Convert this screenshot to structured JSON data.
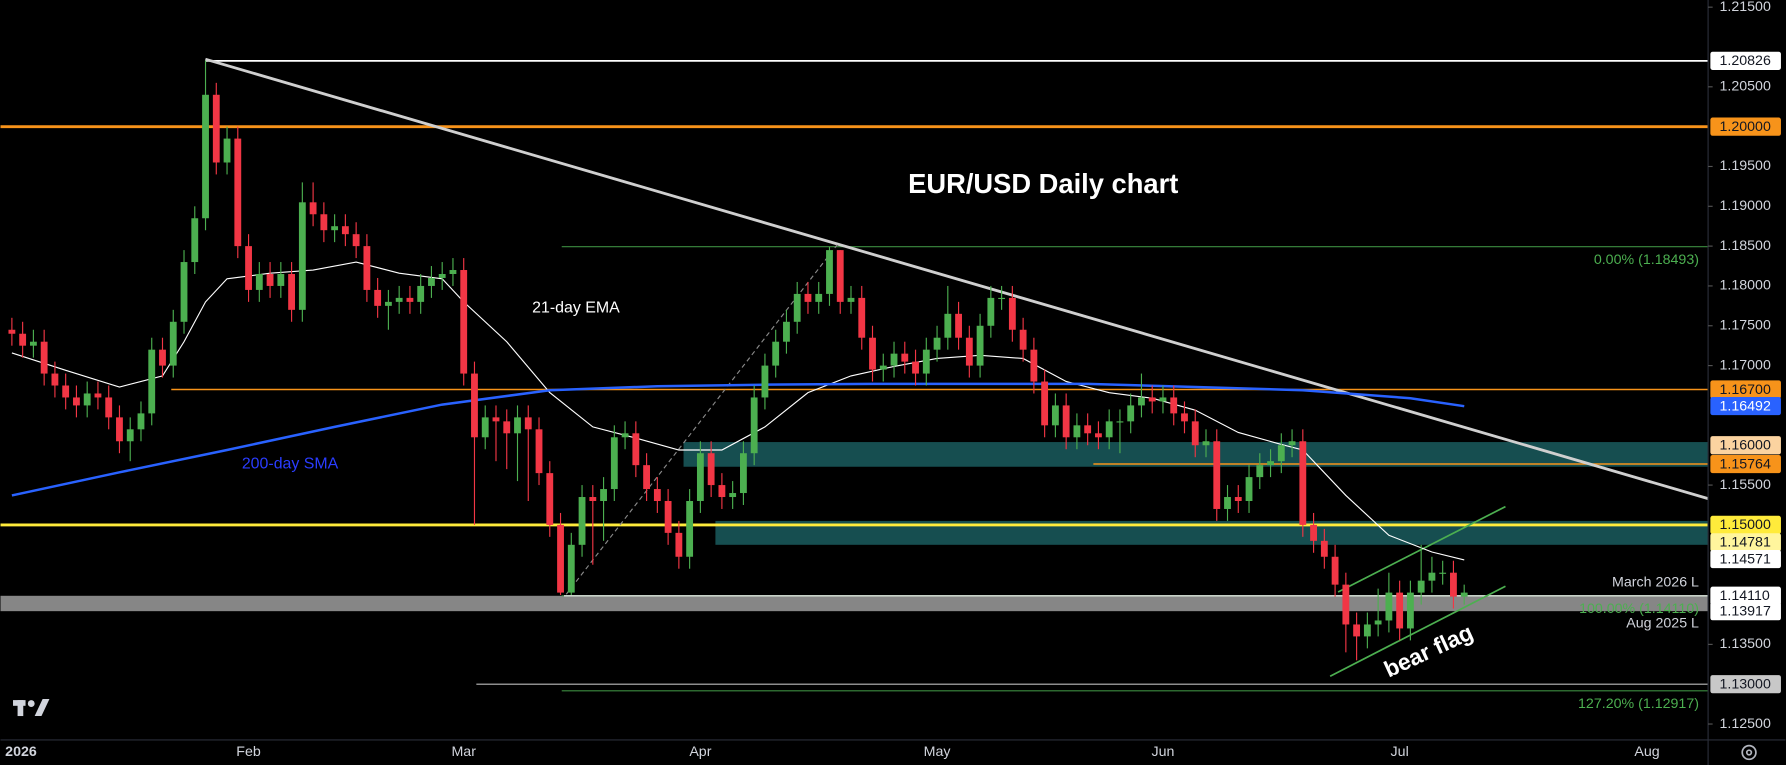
{
  "chart_data": {
    "type": "candlestick",
    "title": "EUR/USD Daily chart",
    "up_color": "#4caf50",
    "down_color": "#f23645",
    "ylim": [
      1.123,
      1.2159
    ],
    "yticks": [
      {
        "value": 1.215,
        "label": "1.21500"
      },
      {
        "value": 1.205,
        "label": "1.20500"
      },
      {
        "value": 1.195,
        "label": "1.19500"
      },
      {
        "value": 1.19,
        "label": "1.19000"
      },
      {
        "value": 1.185,
        "label": "1.18500"
      },
      {
        "value": 1.18,
        "label": "1.18000"
      },
      {
        "value": 1.175,
        "label": "1.17500"
      },
      {
        "value": 1.17,
        "label": "1.17000"
      },
      {
        "value": 1.155,
        "label": "1.15500"
      },
      {
        "value": 1.135,
        "label": "1.13500"
      },
      {
        "value": 1.125,
        "label": "1.12500"
      }
    ],
    "categories": [
      "2026",
      null,
      null,
      null,
      null,
      null,
      null,
      null,
      null,
      null,
      null,
      null,
      null,
      null,
      null,
      null,
      null,
      null,
      null,
      null,
      null,
      null,
      "Feb",
      null,
      null,
      null,
      null,
      null,
      null,
      null,
      null,
      null,
      null,
      null,
      null,
      null,
      null,
      null,
      null,
      null,
      null,
      null,
      "Mar",
      null,
      null,
      null,
      null,
      null,
      null,
      null,
      null,
      null,
      null,
      null,
      null,
      null,
      null,
      null,
      null,
      null,
      null,
      null,
      null,
      null,
      "Apr",
      null,
      null,
      null,
      null,
      null,
      null,
      null,
      null,
      null,
      null,
      null,
      null,
      null,
      null,
      null,
      null,
      null,
      null,
      null,
      null,
      null,
      "May",
      null,
      null,
      null,
      null,
      null,
      null,
      null,
      null,
      null,
      null,
      null,
      null,
      null,
      null,
      null,
      null,
      null,
      null,
      null,
      null,
      "Jun",
      null,
      null,
      null,
      null,
      null,
      null,
      null,
      null,
      null,
      null,
      null,
      null,
      null,
      null,
      null,
      null,
      null,
      null,
      null,
      null,
      null,
      "Jul",
      null,
      null,
      null,
      null,
      null,
      null,
      null,
      null,
      null,
      null,
      null,
      null,
      null,
      null,
      null,
      null,
      null,
      null,
      null,
      null,
      null,
      null,
      "Aug"
    ],
    "open": [
      1.1745,
      1.174,
      1.1725,
      1.173,
      1.169,
      1.1675,
      1.166,
      1.165,
      1.1665,
      1.166,
      1.1635,
      1.1605,
      1.162,
      1.164,
      1.172,
      1.17,
      1.1755,
      1.183,
      1.1885,
      1.204,
      1.1955,
      1.1985,
      1.185,
      1.1795,
      1.1815,
      1.18,
      1.1815,
      1.177,
      1.1905,
      1.189,
      1.187,
      1.1875,
      1.1865,
      1.185,
      1.1795,
      1.1775,
      1.178,
      1.1785,
      1.178,
      1.18,
      1.181,
      1.1815,
      1.182,
      1.169,
      1.161,
      1.1635,
      1.163,
      1.1615,
      1.1635,
      1.162,
      1.1565,
      1.15,
      1.1415,
      1.1475,
      1.1535,
      1.153,
      1.1545,
      1.161,
      1.1615,
      1.1575,
      1.1545,
      1.153,
      1.149,
      1.146,
      1.153,
      1.159,
      1.155,
      1.1535,
      1.154,
      1.159,
      1.166,
      1.17,
      1.173,
      1.1755,
      1.179,
      1.178,
      1.179,
      1.1845,
      1.178,
      1.1785,
      1.1735,
      1.1695,
      1.17,
      1.1715,
      1.1705,
      1.169,
      1.172,
      1.1735,
      1.1765,
      1.1735,
      1.17,
      1.175,
      1.1785,
      1.1785,
      1.1745,
      1.172,
      1.168,
      1.1625,
      1.165,
      1.161,
      1.1625,
      1.1615,
      1.161,
      1.163,
      1.163,
      1.165,
      1.166,
      1.1655,
      1.166,
      1.164,
      1.163,
      1.16,
      1.1605,
      1.152,
      1.1535,
      1.153,
      1.156,
      1.1575,
      1.158,
      1.16,
      1.1605,
      1.15,
      1.148,
      1.146,
      1.1425,
      1.1375,
      1.136,
      1.1375,
      1.138,
      1.1415,
      1.137,
      1.1415,
      1.143,
      1.144,
      1.144,
      1.141,
      null,
      null,
      null,
      null,
      null,
      null,
      null,
      null,
      null,
      null,
      null,
      null,
      null,
      null,
      null,
      null,
      null
    ],
    "high": [
      1.176,
      1.1755,
      1.1745,
      1.1745,
      1.1705,
      1.169,
      1.1675,
      1.168,
      1.168,
      1.1675,
      1.165,
      1.1635,
      1.1655,
      1.1735,
      1.1735,
      1.177,
      1.1845,
      1.19,
      1.2083,
      1.2055,
      1.2,
      1.2,
      1.1865,
      1.183,
      1.183,
      1.183,
      1.183,
      1.193,
      1.193,
      1.1905,
      1.189,
      1.189,
      1.188,
      1.1865,
      1.181,
      1.1795,
      1.18,
      1.18,
      1.1815,
      1.1825,
      1.183,
      1.1835,
      1.1835,
      1.1705,
      1.165,
      1.165,
      1.1645,
      1.165,
      1.165,
      1.1635,
      1.158,
      1.1515,
      1.149,
      1.155,
      1.155,
      1.156,
      1.1625,
      1.163,
      1.163,
      1.159,
      1.156,
      1.1545,
      1.1505,
      1.1545,
      1.1605,
      1.1605,
      1.1565,
      1.1555,
      1.1605,
      1.1675,
      1.1715,
      1.1745,
      1.177,
      1.1805,
      1.1805,
      1.1805,
      1.1849,
      1.1845,
      1.18,
      1.18,
      1.175,
      1.1715,
      1.173,
      1.173,
      1.172,
      1.1735,
      1.175,
      1.18,
      1.178,
      1.175,
      1.1765,
      1.18,
      1.18,
      1.18,
      1.176,
      1.1735,
      1.1695,
      1.1665,
      1.1665,
      1.164,
      1.164,
      1.163,
      1.1645,
      1.1645,
      1.1665,
      1.169,
      1.1675,
      1.1675,
      1.1675,
      1.1655,
      1.1645,
      1.162,
      1.162,
      1.155,
      1.155,
      1.1575,
      1.159,
      1.1595,
      1.1615,
      1.162,
      1.162,
      1.1515,
      1.1495,
      1.1475,
      1.144,
      1.139,
      1.139,
      1.142,
      1.144,
      1.143,
      1.143,
      1.1475,
      1.146,
      1.1455,
      1.1455,
      1.1425,
      null,
      null,
      null,
      null,
      null,
      null,
      null,
      null,
      null,
      null,
      null,
      null,
      null,
      null,
      null,
      null,
      null
    ],
    "low": [
      1.1725,
      1.171,
      1.171,
      1.1675,
      1.166,
      1.1645,
      1.1635,
      1.1635,
      1.1645,
      1.162,
      1.159,
      1.158,
      1.1605,
      1.1625,
      1.1685,
      1.1685,
      1.174,
      1.1815,
      1.187,
      1.194,
      1.194,
      1.1835,
      1.178,
      1.178,
      1.1785,
      1.1785,
      1.1755,
      1.1755,
      1.1875,
      1.1855,
      1.1855,
      1.185,
      1.1835,
      1.178,
      1.176,
      1.1745,
      1.1765,
      1.1765,
      1.1765,
      1.1785,
      1.1795,
      1.18,
      1.1675,
      1.15,
      1.1595,
      1.158,
      1.157,
      1.1555,
      1.153,
      1.155,
      1.1485,
      1.1412,
      1.1412,
      1.146,
      1.145,
      1.148,
      1.153,
      1.1595,
      1.156,
      1.153,
      1.1515,
      1.1475,
      1.1445,
      1.1445,
      1.1515,
      1.1535,
      1.152,
      1.152,
      1.1525,
      1.1575,
      1.1645,
      1.1685,
      1.1715,
      1.174,
      1.1765,
      1.1765,
      1.1775,
      1.1765,
      1.1765,
      1.172,
      1.168,
      1.168,
      1.1685,
      1.169,
      1.1675,
      1.1675,
      1.1705,
      1.172,
      1.172,
      1.1685,
      1.1685,
      1.1735,
      1.177,
      1.173,
      1.1705,
      1.1665,
      1.161,
      1.161,
      1.1595,
      1.1595,
      1.16,
      1.1595,
      1.1595,
      1.159,
      1.1615,
      1.1635,
      1.164,
      1.164,
      1.1625,
      1.1615,
      1.1585,
      1.1585,
      1.1505,
      1.1505,
      1.1515,
      1.1515,
      1.1545,
      1.156,
      1.1565,
      1.1585,
      1.1485,
      1.1465,
      1.1445,
      1.141,
      1.134,
      1.133,
      1.1345,
      1.136,
      1.1365,
      1.1355,
      1.1355,
      1.14,
      1.1415,
      1.1425,
      1.1395,
      1.14,
      null,
      null,
      null,
      null,
      null,
      null,
      null,
      null,
      null,
      null,
      null,
      null,
      null,
      null,
      null,
      null,
      null
    ],
    "close": [
      1.174,
      1.1725,
      1.173,
      1.169,
      1.1675,
      1.166,
      1.165,
      1.1665,
      1.166,
      1.1635,
      1.1605,
      1.162,
      1.164,
      1.172,
      1.17,
      1.1755,
      1.183,
      1.1885,
      1.204,
      1.1955,
      1.1985,
      1.185,
      1.1795,
      1.1815,
      1.18,
      1.1815,
      1.177,
      1.1905,
      1.189,
      1.187,
      1.1875,
      1.1865,
      1.185,
      1.1795,
      1.1775,
      1.178,
      1.1785,
      1.178,
      1.18,
      1.181,
      1.1815,
      1.182,
      1.169,
      1.161,
      1.1635,
      1.163,
      1.1615,
      1.1635,
      1.162,
      1.1565,
      1.15,
      1.1415,
      1.1475,
      1.1535,
      1.153,
      1.1545,
      1.161,
      1.1615,
      1.1575,
      1.1545,
      1.153,
      1.149,
      1.146,
      1.153,
      1.159,
      1.155,
      1.1535,
      1.154,
      1.159,
      1.166,
      1.17,
      1.173,
      1.1755,
      1.179,
      1.178,
      1.179,
      1.1845,
      1.178,
      1.1785,
      1.1735,
      1.1695,
      1.17,
      1.1715,
      1.1705,
      1.169,
      1.172,
      1.1735,
      1.1765,
      1.1735,
      1.17,
      1.175,
      1.1785,
      1.1785,
      1.1745,
      1.172,
      1.168,
      1.1625,
      1.165,
      1.161,
      1.1625,
      1.1615,
      1.161,
      1.163,
      1.163,
      1.165,
      1.166,
      1.1655,
      1.166,
      1.164,
      1.163,
      1.16,
      1.1605,
      1.152,
      1.1535,
      1.153,
      1.156,
      1.1575,
      1.158,
      1.16,
      1.1605,
      1.15,
      1.148,
      1.146,
      1.1425,
      1.1375,
      1.136,
      1.1375,
      1.138,
      1.1415,
      1.137,
      1.1415,
      1.143,
      1.144,
      1.144,
      1.141,
      1.1415,
      null,
      null,
      null,
      null,
      null,
      null,
      null,
      null,
      null,
      null,
      null,
      null,
      null,
      null,
      null,
      null,
      null
    ],
    "series": [
      {
        "name": "21-day EMA",
        "color": "#ffffff",
        "x": [
          0,
          5,
          10,
          14,
          16,
          18,
          20,
          24,
          28,
          32,
          36,
          40,
          42,
          46,
          50,
          54,
          58,
          62,
          66,
          70,
          74,
          78,
          82,
          86,
          90,
          94,
          98,
          102,
          106,
          110,
          114,
          118,
          120,
          124,
          128,
          132,
          135
        ],
        "values": [
          1.1716,
          1.1694,
          1.1673,
          1.1687,
          1.173,
          1.178,
          1.1809,
          1.1816,
          1.182,
          1.183,
          1.1816,
          1.1809,
          1.178,
          1.173,
          1.1666,
          1.1623,
          1.1609,
          1.1594,
          1.1594,
          1.1623,
          1.1666,
          1.1687,
          1.1699,
          1.1709,
          1.1713,
          1.1709,
          1.168,
          1.1666,
          1.1659,
          1.1644,
          1.1616,
          1.1601,
          1.1594,
          1.1537,
          1.1487,
          1.1466,
          1.1456
        ]
      },
      {
        "name": "200-day SMA",
        "color": "#2962ff",
        "x": [
          0,
          10,
          20,
          30,
          40,
          50,
          60,
          70,
          80,
          90,
          100,
          110,
          120,
          130,
          135
        ],
        "values": [
          1.1537,
          1.1566,
          1.1594,
          1.1623,
          1.1651,
          1.1669,
          1.1674,
          1.1676,
          1.1677,
          1.1677,
          1.1677,
          1.1673,
          1.1669,
          1.1659,
          1.1649
        ]
      }
    ],
    "levels": [
      {
        "value": 1.20826,
        "label": "1.20826",
        "color": "#ffffff",
        "line": "#ffffff"
      },
      {
        "value": 1.2,
        "label": "1.20000",
        "color": "#f7931a",
        "line": "#f7931a"
      },
      {
        "value": 1.167,
        "label": "1.16700",
        "color": "#f7931a",
        "line": "#f7931a"
      },
      {
        "value": 1.16492,
        "label": "1.16492",
        "color": "#2962ff",
        "text_color": "#ffffff"
      },
      {
        "value": 1.16,
        "label": "1.16000",
        "color": "#fbd3a0"
      },
      {
        "value": 1.15764,
        "label": "1.15764",
        "color": "#f7931a",
        "line": "#f7931a"
      },
      {
        "value": 1.15,
        "label": "1.15000",
        "color": "#ffeb3b",
        "line": "#ffeb3b"
      },
      {
        "value": 1.14781,
        "label": "1.14781",
        "color": "#fff59d"
      },
      {
        "value": 1.14571,
        "label": "1.14571",
        "color": "#ffffff"
      },
      {
        "value": 1.1411,
        "label": "1.14110",
        "color": "#ffffff",
        "line": "#ffffff"
      },
      {
        "value": 1.13917,
        "label": "1.13917",
        "color": "#ffffff"
      },
      {
        "value": 1.13,
        "label": "1.13000",
        "color": "#c8c8c8",
        "line": "#bdbdbd"
      }
    ],
    "zones": [
      {
        "from": 1.1604,
        "to": 1.1573,
        "color": "#1a5c5e"
      },
      {
        "from": 1.1505,
        "to": 1.1475,
        "color": "#1a5c5e"
      },
      {
        "from": 1.1411,
        "to": 1.13917,
        "color": "#9e9e9e"
      }
    ],
    "fib": {
      "color": "#4caf50",
      "levels": [
        {
          "value": 1.18493,
          "label": "0.00% (1.18493)"
        },
        {
          "value": 1.1411,
          "label": "100.00% (1.14110)"
        },
        {
          "value": 1.12917,
          "label": "127.20% (1.12917)"
        }
      ]
    },
    "annotations": [
      "March 2026 L",
      "Aug 2025 L",
      "bear flag"
    ]
  }
}
